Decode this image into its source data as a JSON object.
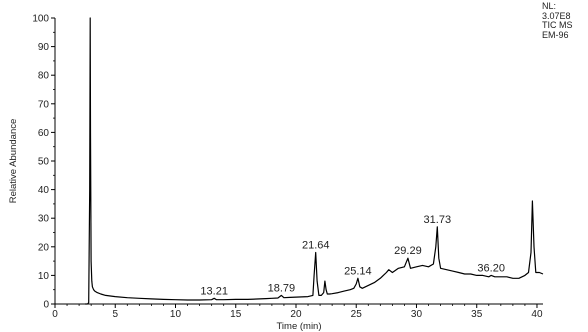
{
  "info_block": {
    "lines": [
      "NL:",
      "3.07E8",
      "TIC  MS",
      "EM-96"
    ]
  },
  "chart_data": {
    "type": "line",
    "title": "",
    "xlabel": "Time (min)",
    "ylabel": "Relative Abundance",
    "xlim": [
      0,
      40.5
    ],
    "ylim": [
      0,
      100
    ],
    "x_ticks": [
      0,
      5,
      10,
      15,
      20,
      25,
      30,
      35,
      40
    ],
    "y_ticks": [
      0,
      10,
      20,
      30,
      40,
      50,
      60,
      70,
      80,
      90,
      100
    ],
    "grid": false,
    "series": [
      {
        "x": [
          2.5,
          2.6,
          2.7,
          2.8,
          2.88,
          2.92,
          2.95,
          3.0,
          3.05,
          3.1,
          3.2,
          3.3,
          3.5,
          3.8,
          4.2,
          5.0,
          6.0,
          7.0,
          8.0,
          9.0,
          10.0,
          11.0,
          12.0,
          13.0,
          13.21,
          13.4,
          14.0,
          15.0,
          16.0,
          17.0,
          17.5,
          18.0,
          18.5,
          18.79,
          19.0,
          19.5,
          20.0,
          20.5,
          21.0,
          21.4,
          21.5,
          21.64,
          21.75,
          21.9,
          22.1,
          22.3,
          22.4,
          22.5,
          22.6,
          22.8,
          23.0,
          23.5,
          24.0,
          24.5,
          24.8,
          25.0,
          25.14,
          25.3,
          25.5,
          26.0,
          26.5,
          27.0,
          27.5,
          27.7,
          28.0,
          28.5,
          29.0,
          29.29,
          29.5,
          30.0,
          30.5,
          31.0,
          31.4,
          31.6,
          31.73,
          31.85,
          32.0,
          32.5,
          33.0,
          33.5,
          34.0,
          34.5,
          35.0,
          35.5,
          36.0,
          36.2,
          36.5,
          37.0,
          37.5,
          38.0,
          38.5,
          39.0,
          39.3,
          39.5,
          39.62,
          39.75,
          39.9,
          40.2,
          40.5
        ],
        "y": [
          0,
          0,
          0,
          0.5,
          40,
          100,
          60,
          15,
          8,
          6,
          5,
          4.5,
          4,
          3.5,
          3,
          2.6,
          2.2,
          2,
          1.8,
          1.6,
          1.5,
          1.4,
          1.4,
          1.5,
          2,
          1.5,
          1.5,
          1.6,
          1.6,
          1.8,
          1.9,
          2,
          2.1,
          3,
          2.2,
          2.3,
          2.4,
          2.5,
          2.6,
          3,
          10,
          18,
          8,
          3,
          3,
          4,
          8,
          5,
          3.5,
          3.5,
          3.6,
          4,
          4.5,
          5,
          5.5,
          7,
          9,
          6,
          5.5,
          6.5,
          7.5,
          9,
          11,
          12,
          11,
          12.5,
          13,
          16,
          12.5,
          13,
          13.5,
          13,
          14,
          20,
          27,
          16,
          12.5,
          12,
          11.5,
          11,
          10.5,
          10.5,
          10,
          10,
          9.5,
          10,
          9.5,
          9.5,
          9.5,
          9,
          9,
          10,
          11,
          18,
          36,
          20,
          11,
          11,
          10.5
        ]
      }
    ],
    "annotations": [
      {
        "text": "13.21",
        "x": 13.21,
        "y": 2
      },
      {
        "text": "18.79",
        "x": 18.79,
        "y": 3
      },
      {
        "text": "21.64",
        "x": 21.64,
        "y": 18
      },
      {
        "text": "25.14",
        "x": 25.14,
        "y": 9
      },
      {
        "text": "29.29",
        "x": 29.29,
        "y": 16
      },
      {
        "text": "31.73",
        "x": 31.73,
        "y": 27
      },
      {
        "text": "36.20",
        "x": 36.2,
        "y": 10
      }
    ]
  }
}
